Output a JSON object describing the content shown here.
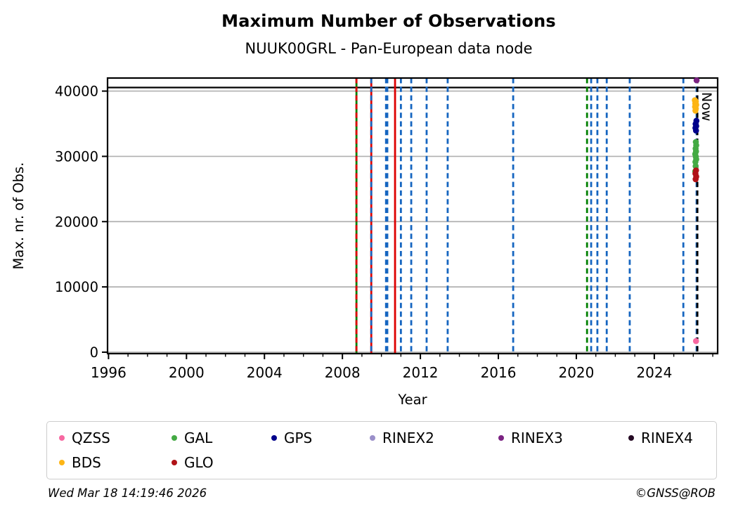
{
  "header": {
    "title": "Maximum Number of Observations",
    "subtitle": "NUUK00GRL - Pan-European data node"
  },
  "footer": {
    "timestamp": "Wed Mar 18 14:19:46 2026",
    "credit": "©GNSS@ROB"
  },
  "colors": {
    "grid": "#b0b0b0",
    "frame": "#000000",
    "event_blue": "#1565c0",
    "event_green": "#008000",
    "event_red": "#dd0000",
    "now_line": "#000000",
    "max_line": "#000000"
  },
  "chart_data": {
    "type": "scatter",
    "title": "Maximum Number of Observations",
    "subtitle": "NUUK00GRL - Pan-European data node",
    "xlabel": "Year",
    "ylabel": "Max. nr. of Obs.",
    "xlim": [
      1995.95,
      2027.25
    ],
    "ylim": [
      -220,
      42000
    ],
    "xticks": [
      1996,
      2000,
      2004,
      2008,
      2012,
      2016,
      2020,
      2024
    ],
    "minor_xticks_every": 1,
    "minor_xtick_range": [
      1996,
      2027
    ],
    "yticks": [
      0,
      10000,
      20000,
      30000,
      40000
    ],
    "grid": "horizontal-only",
    "legend_position": "below",
    "max_obs_line": 40550,
    "now_marker": {
      "x": 2026.21,
      "label": "Now",
      "color": "#000000",
      "style": "dashed"
    },
    "event_lines": [
      {
        "x": 2008.72,
        "solid": "#008000",
        "dashed": "#dd0000",
        "width": 2.8
      },
      {
        "x": 2009.48,
        "solid": "#dd0000",
        "dashed": "#1565c0",
        "width": 2.8
      },
      {
        "x": 2010.27,
        "solid": null,
        "dashed": "#1565c0",
        "width": 4.6
      },
      {
        "x": 2010.7,
        "solid": "#dd0000",
        "dashed": null,
        "width": 2.8
      },
      {
        "x": 2011.0,
        "solid": null,
        "dashed": "#1565c0",
        "width": 2.8
      },
      {
        "x": 2011.53,
        "solid": null,
        "dashed": "#1565c0",
        "width": 2.8
      },
      {
        "x": 2012.32,
        "solid": null,
        "dashed": "#1565c0",
        "width": 2.8
      },
      {
        "x": 2013.4,
        "solid": null,
        "dashed": "#1565c0",
        "width": 2.8
      },
      {
        "x": 2016.76,
        "solid": null,
        "dashed": "#1565c0",
        "width": 2.8
      },
      {
        "x": 2020.55,
        "solid": null,
        "dashed": "#008000",
        "width": 2.8
      },
      {
        "x": 2020.76,
        "solid": null,
        "dashed": "#1565c0",
        "width": 2.8
      },
      {
        "x": 2021.08,
        "solid": null,
        "dashed": "#1565c0",
        "width": 2.8
      },
      {
        "x": 2021.56,
        "solid": null,
        "dashed": "#1565c0",
        "width": 2.8
      },
      {
        "x": 2022.74,
        "solid": null,
        "dashed": "#1565c0",
        "width": 2.8
      },
      {
        "x": 2025.49,
        "solid": null,
        "dashed": "#1565c0",
        "width": 2.8
      },
      {
        "x": 2026.17,
        "solid": null,
        "dashed": "#1565c0",
        "width": 2.8
      }
    ],
    "series": [
      {
        "name": "QZSS",
        "color": "#f768a1",
        "points": [
          [
            2026.14,
            1700
          ]
        ]
      },
      {
        "name": "GAL",
        "color": "#44aa44",
        "points": [
          [
            2026.13,
            32200
          ],
          [
            2026.15,
            31700
          ],
          [
            2026.12,
            31200
          ],
          [
            2026.14,
            30750
          ],
          [
            2026.1,
            30350
          ],
          [
            2026.13,
            29950
          ],
          [
            2026.15,
            29550
          ],
          [
            2026.11,
            29150
          ],
          [
            2026.12,
            28500
          ],
          [
            2026.1,
            27700
          ]
        ]
      },
      {
        "name": "GPS",
        "color": "#00008b",
        "points": [
          [
            2026.16,
            35450
          ],
          [
            2026.12,
            34950
          ],
          [
            2026.15,
            34650
          ],
          [
            2026.11,
            34350
          ],
          [
            2026.14,
            33950
          ]
        ]
      },
      {
        "name": "RINEX2",
        "color": "#9a8fc9",
        "points": []
      },
      {
        "name": "RINEX3",
        "color": "#7b2382",
        "points": [
          [
            2026.17,
            41650
          ]
        ]
      },
      {
        "name": "RINEX4",
        "color": "#250a24",
        "points": []
      },
      {
        "name": "BDS",
        "color": "#fdb515",
        "points": [
          [
            2026.08,
            38600
          ],
          [
            2026.13,
            38400
          ],
          [
            2026.1,
            38100
          ],
          [
            2026.15,
            37900
          ],
          [
            2026.09,
            37600
          ],
          [
            2026.13,
            37300
          ],
          [
            2026.11,
            37000
          ]
        ]
      },
      {
        "name": "GLO",
        "color": "#b01217",
        "points": [
          [
            2026.14,
            27850
          ],
          [
            2026.11,
            27350
          ],
          [
            2026.15,
            26900
          ],
          [
            2026.12,
            26500
          ]
        ]
      }
    ]
  }
}
